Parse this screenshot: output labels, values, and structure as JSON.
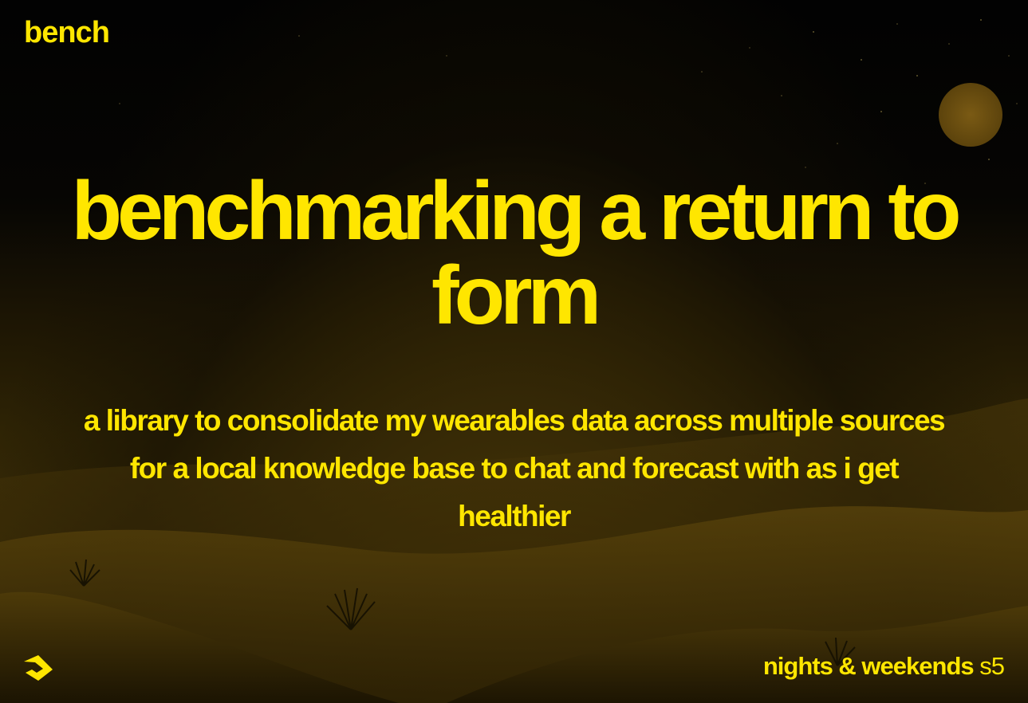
{
  "brand": "bench",
  "title": "benchmarking a return to form",
  "subtitle": "a library to consolidate my wearables data across multiple sources for a local knowledge base to chat and forecast with as i get healthier",
  "footer": {
    "program": "nights & weekends",
    "season": "s5"
  },
  "logo": {
    "icon": "buildspace-logo-icon"
  },
  "colors": {
    "accent": "#ffe600",
    "background": "#000000",
    "sand": "#3b2d07",
    "moon": "#6b4f10"
  }
}
